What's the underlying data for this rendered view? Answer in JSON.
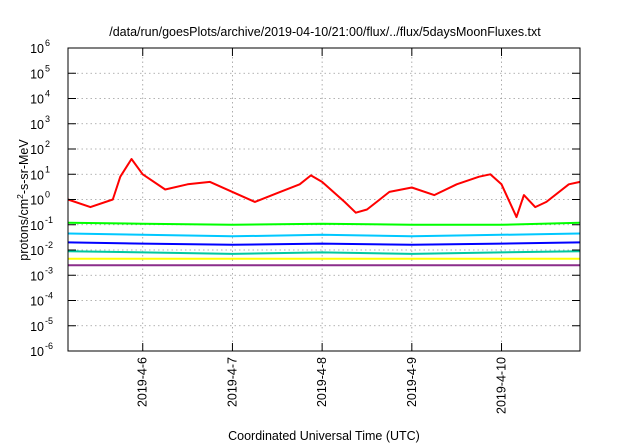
{
  "chart_data": {
    "type": "line",
    "title": "/data/run/goesPlots/archive/2019-04-10/21:00/flux/../flux/5daysMoonFluxes.txt",
    "xlabel": "Coordinated Universal Time (UTC)",
    "ylabel_parts": {
      "base": "protons/cm",
      "sup": "2",
      "rest": "-s-sr-MeV"
    },
    "yscale": "log",
    "ylim": [
      1e-06,
      1000000.0
    ],
    "xlim": [
      "2019-04-05 04:00",
      "2019-04-10 21:00"
    ],
    "grid": true,
    "legend": "none",
    "x_ticks": [
      "2019-04-06",
      "2019-04-07",
      "2019-04-08",
      "2019-04-09",
      "2019-04-10"
    ],
    "x_tick_labels": [
      "2019-4-6",
      "2019-4-7",
      "2019-4-8",
      "2019-4-9",
      "2019-4-10"
    ],
    "y_ticks": [
      {
        "exp": -6,
        "label": "10",
        "sup": "-6"
      },
      {
        "exp": -5,
        "label": "10",
        "sup": "-5"
      },
      {
        "exp": -4,
        "label": "10",
        "sup": "-4"
      },
      {
        "exp": -3,
        "label": "10",
        "sup": "-3"
      },
      {
        "exp": -2,
        "label": "10",
        "sup": "-2"
      },
      {
        "exp": -1,
        "label": "10",
        "sup": "-1"
      },
      {
        "exp": 0,
        "label": "10",
        "sup": "0"
      },
      {
        "exp": 1,
        "label": "10",
        "sup": "1"
      },
      {
        "exp": 2,
        "label": "10",
        "sup": "2"
      },
      {
        "exp": 3,
        "label": "10",
        "sup": "3"
      },
      {
        "exp": 4,
        "label": "10",
        "sup": "4"
      },
      {
        "exp": 5,
        "label": "10",
        "sup": "5"
      },
      {
        "exp": 6,
        "label": "10",
        "sup": "6"
      }
    ],
    "series": [
      {
        "color": "#ff0000",
        "x": [
          "2019-04-05 04:00",
          "2019-04-05 10:00",
          "2019-04-05 16:00",
          "2019-04-05 18:00",
          "2019-04-05 21:00",
          "2019-04-06 00:00",
          "2019-04-06 06:00",
          "2019-04-06 12:00",
          "2019-04-06 18:00",
          "2019-04-07 00:00",
          "2019-04-07 06:00",
          "2019-04-07 12:00",
          "2019-04-07 18:00",
          "2019-04-07 21:00",
          "2019-04-08 00:00",
          "2019-04-08 06:00",
          "2019-04-08 09:00",
          "2019-04-08 12:00",
          "2019-04-08 18:00",
          "2019-04-09 00:00",
          "2019-04-09 06:00",
          "2019-04-09 12:00",
          "2019-04-09 18:00",
          "2019-04-09 21:00",
          "2019-04-10 00:00",
          "2019-04-10 04:00",
          "2019-04-10 06:00",
          "2019-04-10 09:00",
          "2019-04-10 12:00",
          "2019-04-10 18:00",
          "2019-04-10 21:00"
        ],
        "y": [
          1,
          0.5,
          1,
          8,
          40,
          10,
          2.5,
          4,
          5,
          2,
          0.8,
          1.8,
          4,
          9,
          5,
          0.8,
          0.3,
          0.4,
          2,
          3,
          1.5,
          4,
          8,
          10,
          4,
          0.2,
          1.5,
          0.5,
          0.8,
          4,
          5
        ]
      },
      {
        "color": "#00ff00",
        "x": [
          "2019-04-05 04:00",
          "2019-04-06 00:00",
          "2019-04-07 00:00",
          "2019-04-08 00:00",
          "2019-04-09 00:00",
          "2019-04-10 00:00",
          "2019-04-10 21:00"
        ],
        "y": [
          0.12,
          0.11,
          0.1,
          0.11,
          0.1,
          0.1,
          0.12
        ]
      },
      {
        "color": "#00c8ff",
        "x": [
          "2019-04-05 04:00",
          "2019-04-06 00:00",
          "2019-04-07 00:00",
          "2019-04-08 00:00",
          "2019-04-09 00:00",
          "2019-04-10 00:00",
          "2019-04-10 21:00"
        ],
        "y": [
          0.045,
          0.04,
          0.035,
          0.04,
          0.035,
          0.04,
          0.045
        ]
      },
      {
        "color": "#0000ff",
        "x": [
          "2019-04-05 04:00",
          "2019-04-06 00:00",
          "2019-04-07 00:00",
          "2019-04-08 00:00",
          "2019-04-09 00:00",
          "2019-04-10 00:00",
          "2019-04-10 21:00"
        ],
        "y": [
          0.02,
          0.018,
          0.016,
          0.018,
          0.016,
          0.018,
          0.02
        ]
      },
      {
        "color": "#00c8a0",
        "x": [
          "2019-04-05 04:00",
          "2019-04-06 00:00",
          "2019-04-07 00:00",
          "2019-04-08 00:00",
          "2019-04-09 00:00",
          "2019-04-10 00:00",
          "2019-04-10 21:00"
        ],
        "y": [
          0.009,
          0.008,
          0.007,
          0.008,
          0.007,
          0.008,
          0.009
        ]
      },
      {
        "color": "#ffff00",
        "x": [
          "2019-04-05 04:00",
          "2019-04-06 00:00",
          "2019-04-07 00:00",
          "2019-04-08 00:00",
          "2019-04-09 00:00",
          "2019-04-10 00:00",
          "2019-04-10 21:00"
        ],
        "y": [
          0.0045,
          0.0045,
          0.0045,
          0.0045,
          0.0045,
          0.0045,
          0.0045
        ]
      },
      {
        "color": "#8b2d8b",
        "x": [
          "2019-04-05 04:00",
          "2019-04-06 00:00",
          "2019-04-07 00:00",
          "2019-04-08 00:00",
          "2019-04-09 00:00",
          "2019-04-10 00:00",
          "2019-04-10 21:00"
        ],
        "y": [
          0.0025,
          0.0025,
          0.0025,
          0.0025,
          0.0025,
          0.0025,
          0.0025
        ]
      }
    ]
  }
}
